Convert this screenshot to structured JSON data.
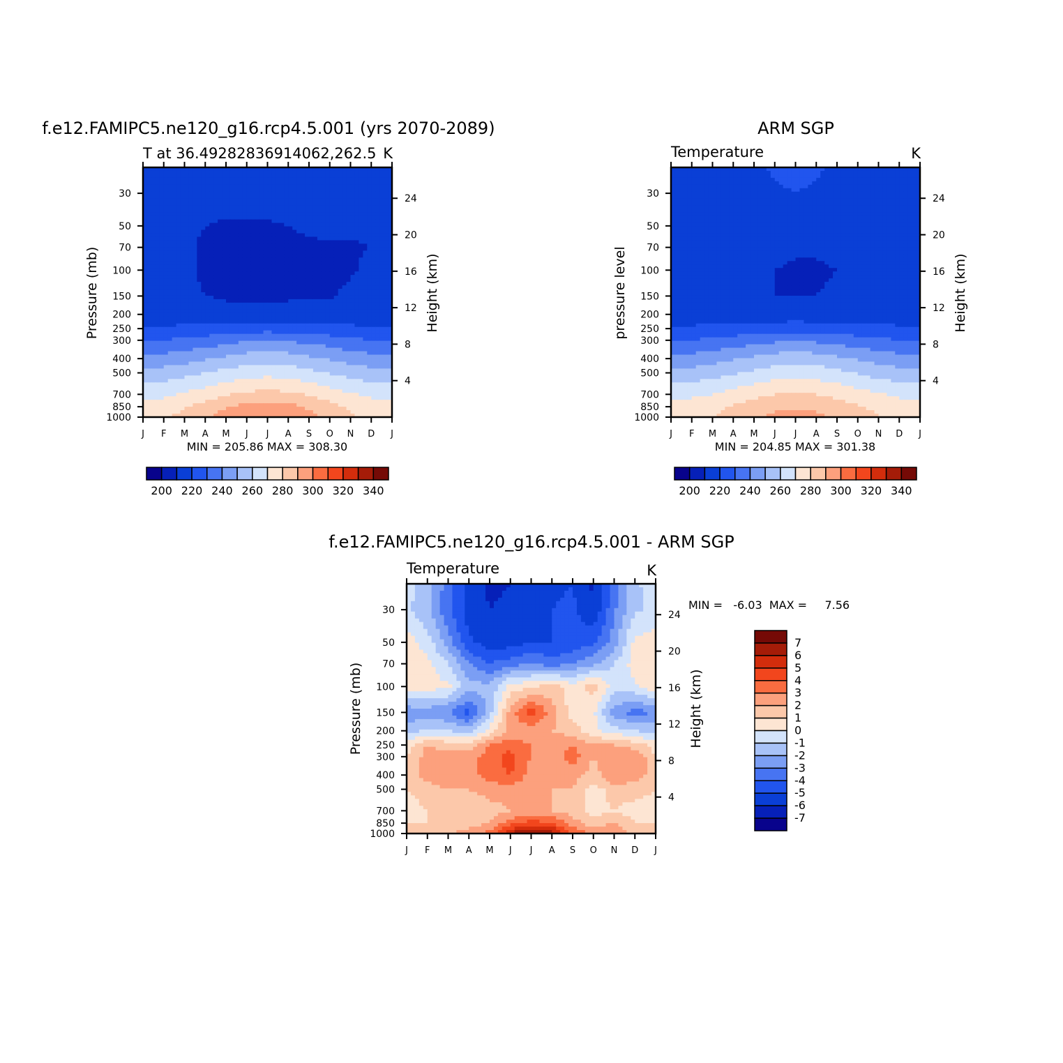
{
  "figure": {
    "panels": [
      {
        "id": "model",
        "main_title": "f.e12.FAMIPC5.ne120_g16.rcp4.5.001 (yrs 2070-2089)",
        "left_subtitle": "T at 36.49282836914062,262.5",
        "right_subtitle": "K",
        "y_label": "Pressure (mb)",
        "y2_label": "Height (km)",
        "minmax_text": "MIN = 205.86  MAX = 308.30"
      },
      {
        "id": "obs",
        "main_title": "ARM SGP",
        "left_subtitle": "Temperature",
        "right_subtitle": "K",
        "y_label": "pressure level",
        "y2_label": "Height (km)",
        "minmax_text": "MIN = 204.85  MAX = 301.38"
      },
      {
        "id": "diff",
        "main_title": "f.e12.FAMIPC5.ne120_g16.rcp4.5.001 - ARM SGP",
        "left_subtitle": "Temperature",
        "right_subtitle": "K",
        "y_label": "Pressure (mb)",
        "y2_label": "Height (km)",
        "minmax_text": "MIN =   -6.03  MAX =     7.56"
      }
    ]
  },
  "chart_data": [
    {
      "type": "heatmap",
      "panel": "model",
      "title": "f.e12.FAMIPC5.ne120_g16.rcp4.5.001 (yrs 2070-2089)",
      "variable": "T",
      "units": "K",
      "x_ticks": [
        "J",
        "F",
        "M",
        "A",
        "M",
        "J",
        "J",
        "A",
        "S",
        "O",
        "N",
        "D",
        "J"
      ],
      "pressure_ticks": [
        30,
        50,
        70,
        100,
        150,
        200,
        250,
        300,
        400,
        500,
        700,
        850,
        1000
      ],
      "pressure_ylim": [
        1000,
        20
      ],
      "height_ticks_km": [
        4,
        8,
        12,
        16,
        20,
        24
      ],
      "min": 205.86,
      "max": 308.3,
      "colorbar": {
        "orientation": "horizontal",
        "levels": [
          200,
          210,
          220,
          230,
          240,
          250,
          260,
          270,
          280,
          290,
          300,
          310,
          320,
          330,
          340
        ],
        "labels": [
          "200",
          "220",
          "240",
          "260",
          "280",
          "300",
          "320",
          "340"
        ],
        "colors": [
          "#08038c",
          "#0620b8",
          "#0a3fd6",
          "#2155ee",
          "#4774f2",
          "#7b9ef4",
          "#a8c2f8",
          "#d3e3fb",
          "#fde5d3",
          "#fcc8aa",
          "#fca07d",
          "#fa6c40",
          "#f2461d",
          "#d32d0c",
          "#a51c08",
          "#750a06"
        ]
      },
      "grid": {
        "months": 13,
        "levels_mb": [
          20,
          30,
          50,
          70,
          100,
          150,
          200,
          250,
          300,
          400,
          500,
          700,
          850,
          1000
        ],
        "values": [
          [
            214,
            214,
            215,
            215,
            216,
            216,
            216,
            216,
            216,
            216,
            215,
            214,
            214
          ],
          [
            213,
            213,
            214,
            214,
            214,
            215,
            215,
            215,
            215,
            215,
            214,
            213,
            213
          ],
          [
            210,
            212,
            212,
            210,
            209,
            209,
            209,
            210,
            212,
            214,
            212,
            211,
            210
          ],
          [
            211,
            212,
            212,
            208,
            208,
            208,
            208,
            208,
            208,
            208,
            209,
            210,
            211
          ],
          [
            212,
            212,
            212,
            208,
            208,
            208,
            208,
            208,
            208,
            208,
            209,
            212,
            212
          ],
          [
            214,
            214,
            213,
            210,
            209,
            208,
            208,
            209,
            209,
            209,
            212,
            214,
            214
          ],
          [
            215,
            215,
            215,
            214,
            213,
            213,
            213,
            213,
            213,
            214,
            214,
            214,
            215
          ],
          [
            221,
            221,
            222,
            223,
            224,
            225,
            226,
            225,
            224,
            223,
            222,
            221,
            221
          ],
          [
            230,
            230,
            232,
            234,
            236,
            239,
            240,
            239,
            237,
            235,
            232,
            230,
            230
          ],
          [
            243,
            244,
            246,
            249,
            252,
            255,
            256,
            255,
            252,
            249,
            246,
            244,
            243
          ],
          [
            253,
            254,
            257,
            260,
            263,
            266,
            267,
            266,
            263,
            259,
            256,
            254,
            253
          ],
          [
            267,
            268,
            271,
            275,
            279,
            282,
            283,
            282,
            279,
            275,
            271,
            268,
            267
          ],
          [
            274,
            275,
            279,
            284,
            289,
            293,
            294,
            293,
            288,
            283,
            278,
            275,
            274
          ],
          [
            278,
            279,
            283,
            289,
            295,
            299,
            300,
            299,
            294,
            287,
            281,
            278,
            278
          ]
        ]
      }
    },
    {
      "type": "heatmap",
      "panel": "obs",
      "title": "ARM SGP",
      "variable": "Temperature",
      "units": "K",
      "x_ticks": [
        "J",
        "F",
        "M",
        "A",
        "M",
        "J",
        "J",
        "A",
        "S",
        "O",
        "N",
        "D",
        "J"
      ],
      "pressure_ticks": [
        30,
        50,
        70,
        100,
        150,
        200,
        250,
        300,
        400,
        500,
        700,
        850,
        1000
      ],
      "pressure_ylim": [
        1000,
        20
      ],
      "height_ticks_km": [
        4,
        8,
        12,
        16,
        20,
        24
      ],
      "min": 204.85,
      "max": 301.38,
      "colorbar": {
        "orientation": "horizontal",
        "levels": [
          200,
          210,
          220,
          230,
          240,
          250,
          260,
          270,
          280,
          290,
          300,
          310,
          320,
          330,
          340
        ],
        "labels": [
          "200",
          "220",
          "240",
          "260",
          "280",
          "300",
          "320",
          "340"
        ],
        "colors": [
          "#08038c",
          "#0620b8",
          "#0a3fd6",
          "#2155ee",
          "#4774f2",
          "#7b9ef4",
          "#a8c2f8",
          "#d3e3fb",
          "#fde5d3",
          "#fcc8aa",
          "#fca07d",
          "#fa6c40",
          "#f2461d",
          "#d32d0c",
          "#a51c08",
          "#750a06"
        ]
      },
      "grid": {
        "months": 13,
        "levels_mb": [
          20,
          30,
          50,
          70,
          100,
          150,
          200,
          250,
          300,
          400,
          500,
          700,
          850,
          1000
        ],
        "values": [
          [
            216,
            216,
            217,
            218,
            219,
            221,
            222,
            221,
            219,
            217,
            216,
            216,
            216
          ],
          [
            215,
            215,
            215,
            216,
            217,
            219,
            220,
            219,
            217,
            216,
            215,
            215,
            215
          ],
          [
            211,
            212,
            213,
            214,
            214,
            215,
            215,
            215,
            214,
            214,
            213,
            211,
            211
          ],
          [
            211,
            211,
            210,
            212,
            212,
            212,
            211,
            211,
            212,
            213,
            211,
            210,
            211
          ],
          [
            213,
            213,
            211,
            211,
            210,
            210,
            209,
            209,
            210,
            210,
            211,
            213,
            213
          ],
          [
            214,
            214,
            214,
            213,
            212,
            210,
            210,
            210,
            211,
            212,
            213,
            214,
            214
          ],
          [
            216,
            216,
            216,
            216,
            215,
            214,
            214,
            214,
            215,
            215,
            216,
            216,
            216
          ],
          [
            221,
            221,
            222,
            223,
            224,
            225,
            226,
            225,
            224,
            223,
            222,
            221,
            221
          ],
          [
            229,
            230,
            232,
            234,
            236,
            238,
            239,
            238,
            236,
            234,
            232,
            230,
            229
          ],
          [
            243,
            244,
            246,
            249,
            252,
            255,
            256,
            255,
            252,
            249,
            246,
            244,
            243
          ],
          [
            253,
            254,
            256,
            259,
            262,
            265,
            266,
            265,
            263,
            259,
            256,
            254,
            253
          ],
          [
            267,
            268,
            270,
            274,
            277,
            280,
            281,
            280,
            277,
            274,
            271,
            268,
            267
          ],
          [
            274,
            275,
            277,
            281,
            285,
            288,
            289,
            288,
            285,
            281,
            278,
            275,
            274
          ],
          [
            276,
            277,
            280,
            284,
            288,
            292,
            293,
            292,
            288,
            284,
            280,
            277,
            276
          ]
        ]
      }
    },
    {
      "type": "heatmap",
      "panel": "diff",
      "title": "f.e12.FAMIPC5.ne120_g16.rcp4.5.001 - ARM SGP",
      "variable": "Temperature",
      "units": "K",
      "x_ticks": [
        "J",
        "F",
        "M",
        "A",
        "M",
        "J",
        "J",
        "A",
        "S",
        "O",
        "N",
        "D",
        "J"
      ],
      "pressure_ticks": [
        30,
        50,
        70,
        100,
        150,
        200,
        250,
        300,
        400,
        500,
        700,
        850,
        1000
      ],
      "pressure_ylim": [
        1000,
        20
      ],
      "height_ticks_km": [
        4,
        8,
        12,
        16,
        20,
        24
      ],
      "min": -6.03,
      "max": 7.56,
      "colorbar": {
        "orientation": "vertical",
        "levels": [
          -7,
          -6,
          -5,
          -4,
          -3,
          -2,
          -1,
          0,
          1,
          2,
          3,
          4,
          5,
          6,
          7
        ],
        "labels": [
          "7",
          "6",
          "5",
          "4",
          "3",
          "2",
          "1",
          "0",
          "-1",
          "-2",
          "-3",
          "-4",
          "-5",
          "-6",
          "-7"
        ],
        "colors": [
          "#08038c",
          "#0620b8",
          "#0a3fd6",
          "#2155ee",
          "#4774f2",
          "#7b9ef4",
          "#a8c2f8",
          "#d3e3fb",
          "#fde5d3",
          "#fcc8aa",
          "#fca07d",
          "#fa6c40",
          "#f2461d",
          "#d32d0c",
          "#a51c08",
          "#750a06"
        ]
      },
      "grid": {
        "months": 13,
        "levels_mb": [
          20,
          30,
          50,
          70,
          100,
          150,
          200,
          250,
          300,
          400,
          500,
          700,
          850,
          1000
        ],
        "values": [
          [
            -0.5,
            -1.5,
            -3.5,
            -5.5,
            -6.2,
            -6.0,
            -5.5,
            -5.2,
            -5.0,
            -6.2,
            -3.5,
            -1.2,
            -0.5
          ],
          [
            -0.8,
            -1.8,
            -3.8,
            -5.5,
            -6.0,
            -5.8,
            -5.3,
            -5.0,
            -4.8,
            -5.8,
            -3.2,
            -1.2,
            -0.8
          ],
          [
            0.5,
            -0.5,
            -2.5,
            -4.8,
            -5.5,
            -5.5,
            -5.0,
            -5.0,
            -4.8,
            -4.2,
            -2.5,
            0.3,
            0.5
          ],
          [
            0.8,
            0.3,
            -1.0,
            -3.0,
            -4.0,
            -3.5,
            -3.0,
            -3.5,
            -3.0,
            -2.2,
            -1.0,
            0.5,
            0.8
          ],
          [
            0.8,
            0.5,
            0.2,
            -1.5,
            -1.8,
            0.5,
            0.8,
            1.5,
            0.5,
            1.5,
            -0.5,
            -0.2,
            0.8
          ],
          [
            -2.8,
            -2.5,
            -3.0,
            -4.5,
            -1.5,
            2.5,
            4.5,
            2.5,
            0.5,
            0.2,
            -2.5,
            -3.5,
            -2.8
          ],
          [
            -1.5,
            -0.8,
            -1.0,
            -1.5,
            0.5,
            2.5,
            2.5,
            2.0,
            1.5,
            0.3,
            -0.5,
            -1.0,
            -1.5
          ],
          [
            0.5,
            2.0,
            1.5,
            1.5,
            3.0,
            3.5,
            3.0,
            2.5,
            3.0,
            2.0,
            2.0,
            1.5,
            0.5
          ],
          [
            1.0,
            2.5,
            2.5,
            2.5,
            3.5,
            4.5,
            3.0,
            2.5,
            3.5,
            2.0,
            3.0,
            3.0,
            1.0
          ],
          [
            1.5,
            2.5,
            3.0,
            2.5,
            3.5,
            4.0,
            2.5,
            2.5,
            2.5,
            1.5,
            3.0,
            2.5,
            1.5
          ],
          [
            1.0,
            1.5,
            2.0,
            2.0,
            2.5,
            2.5,
            2.5,
            2.0,
            2.0,
            0.5,
            1.5,
            1.5,
            1.0
          ],
          [
            0.5,
            1.0,
            1.0,
            1.0,
            1.5,
            2.0,
            2.0,
            2.0,
            1.5,
            0.5,
            1.0,
            0.5,
            0.5
          ],
          [
            1.0,
            1.0,
            1.0,
            1.5,
            2.0,
            3.5,
            4.5,
            4.0,
            2.5,
            1.5,
            2.0,
            1.0,
            1.0
          ],
          [
            1.5,
            1.5,
            2.0,
            2.5,
            3.5,
            6.0,
            7.5,
            6.5,
            4.0,
            2.5,
            3.0,
            1.5,
            1.5
          ]
        ]
      }
    }
  ]
}
